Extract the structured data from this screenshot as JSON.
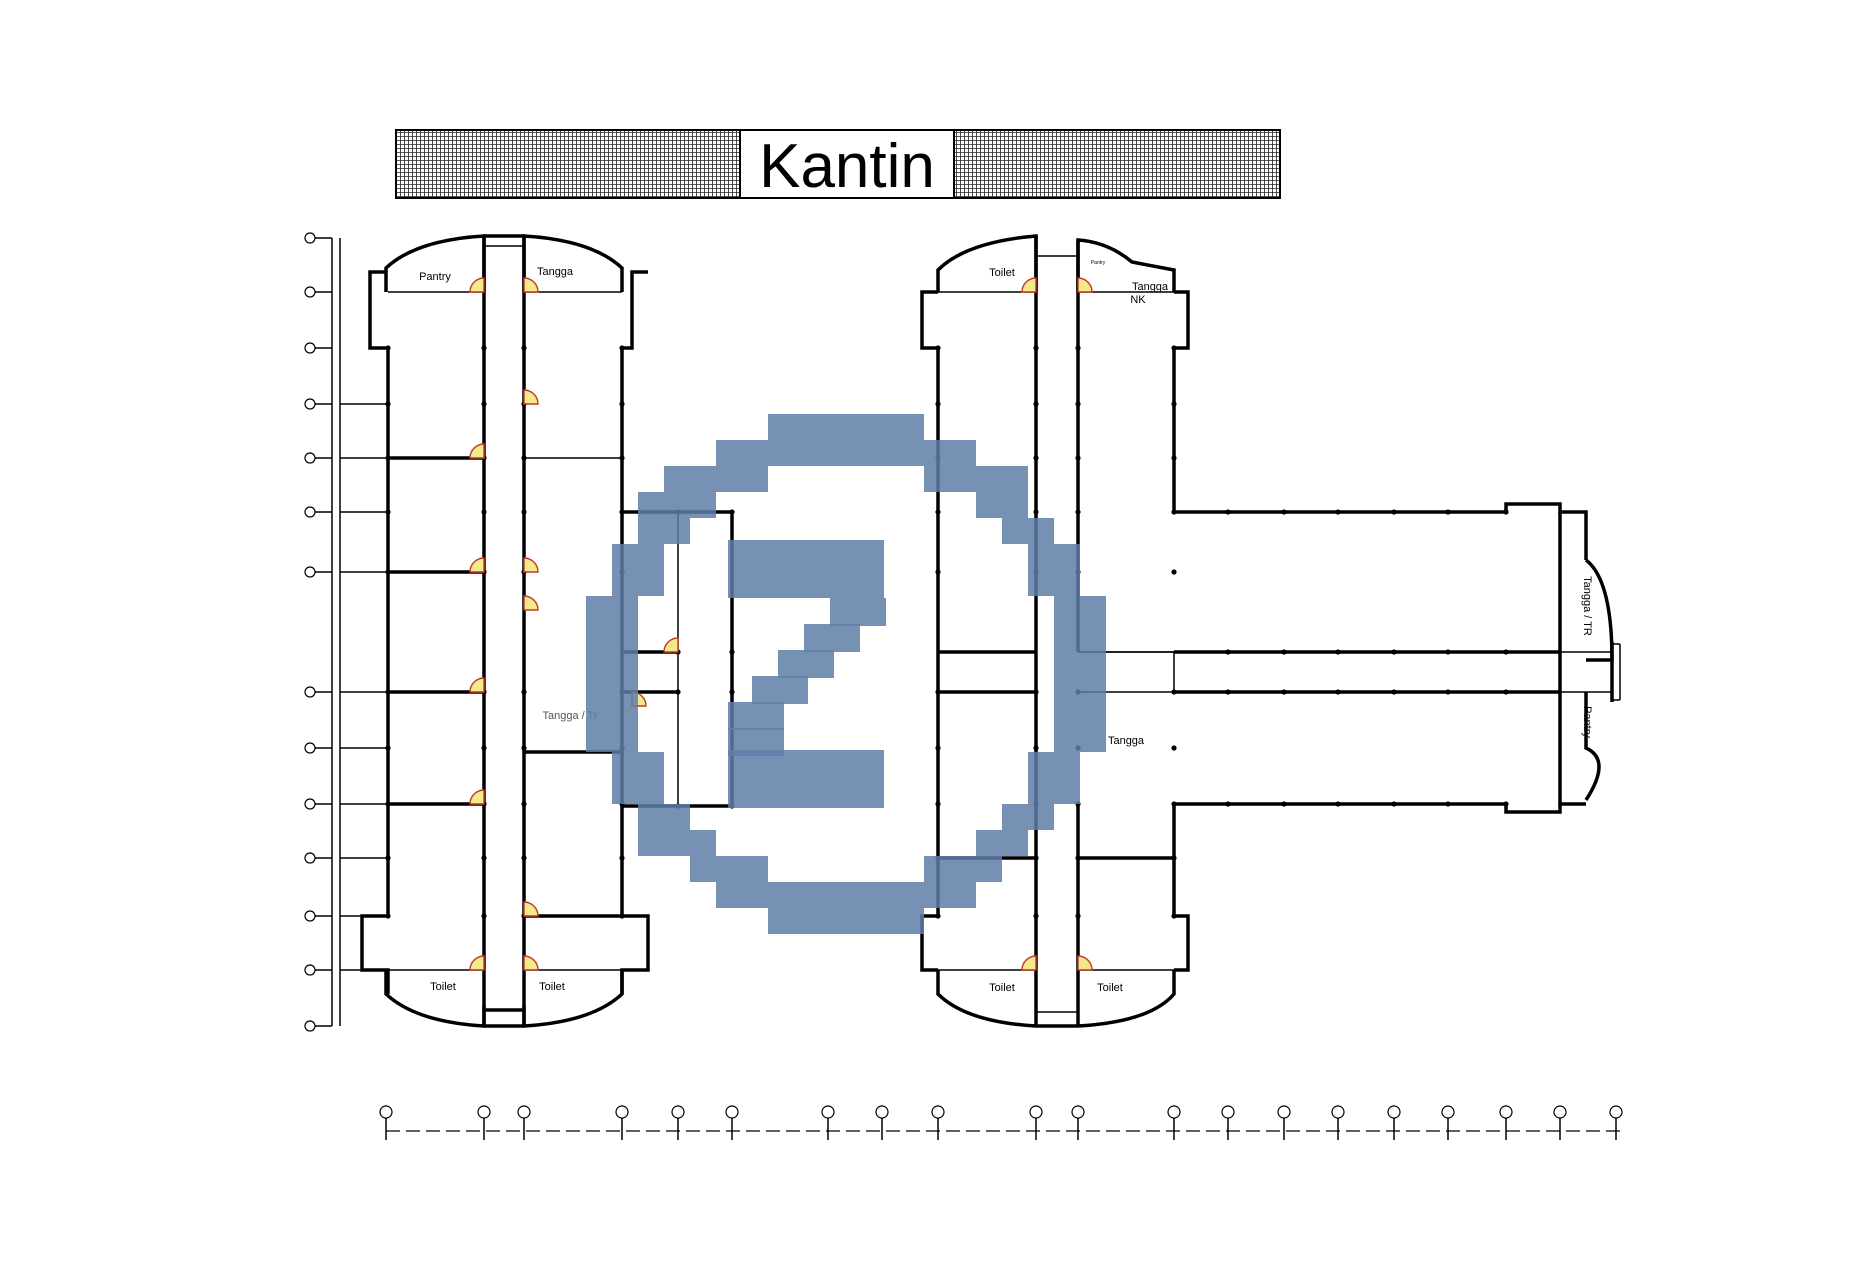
{
  "banner": {
    "title": "Kantin"
  },
  "wing_labels": {
    "pantry_top_left": "Pantry",
    "tangga_top_left": "Tangga",
    "toilet_top_right_wing": "Toilet",
    "pantry_small": "Pantry",
    "tangga_nk": "Tangga",
    "nk": "NK",
    "tangga_tr_center": "Tangga / Tr",
    "tangga_center": "Tangga",
    "tangga_tr_east": "Tangga / TR",
    "pantry_east": "Pantry",
    "toilet_bl1": "Toilet",
    "toilet_bl2": "Toilet",
    "toilet_br1": "Toilet",
    "toilet_br2": "Toilet"
  },
  "colors": {
    "watermark": "#5f7ea8",
    "door_fill": "#f2e98a",
    "door_stroke": "#c0392b"
  },
  "watermark_icon": "z-logo-watermark"
}
